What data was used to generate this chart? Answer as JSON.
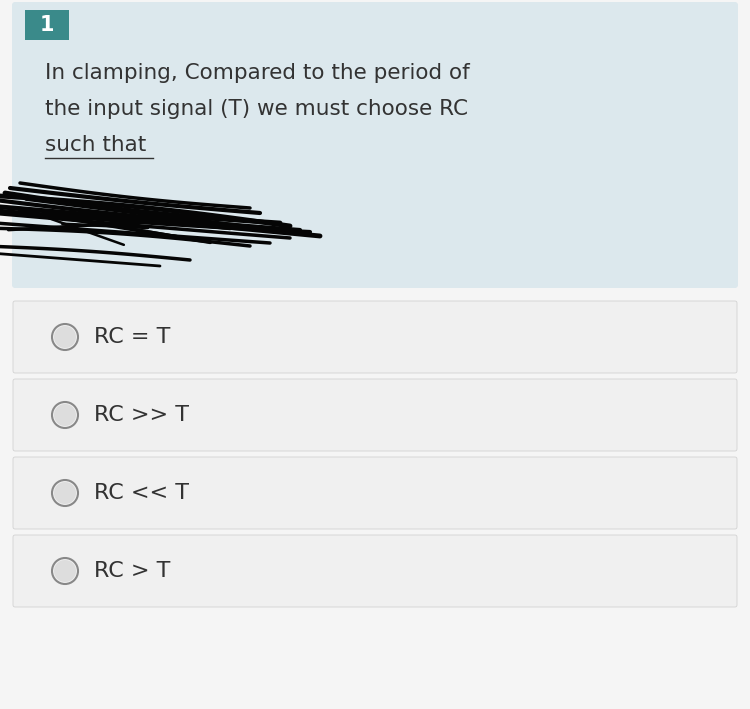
{
  "question_number": "1",
  "question_text_lines": [
    "In clamping, Compared to the period of",
    "the input signal (T) we must choose RC",
    "such that"
  ],
  "options": [
    "RC = T",
    "RC >> T",
    "RC << T",
    "RC > T"
  ],
  "header_bg": "#3a8a8a",
  "question_bg": "#dce8ed",
  "option_bg": "#f0f0f0",
  "outer_bg": "#f5f5f5",
  "header_text_color": "#ffffff",
  "question_text_color": "#333333",
  "option_text_color": "#333333",
  "radio_outer_color": "#888888",
  "radio_inner_color": "#dddddd",
  "scribble_color": "#050505"
}
